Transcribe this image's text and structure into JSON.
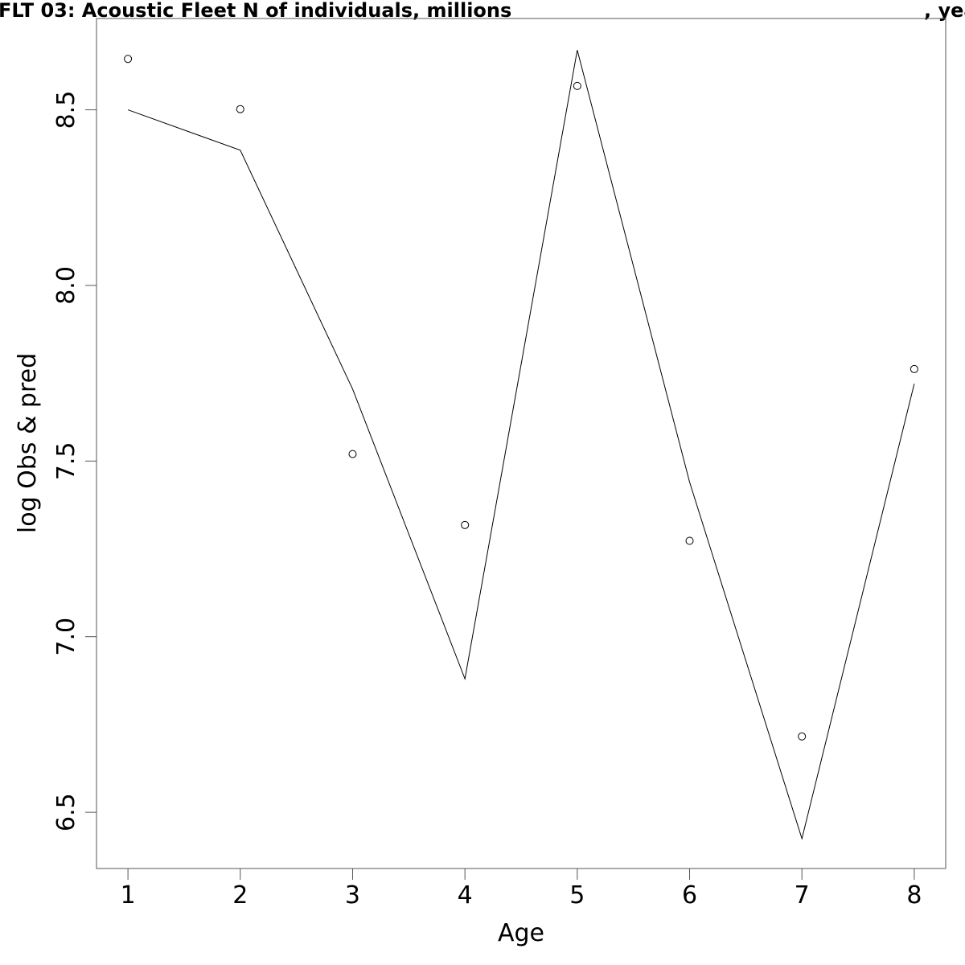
{
  "chart_data": {
    "type": "line",
    "title": "FLT 03: Acoustic Fleet   N of individuals, millions",
    "title_right": ", yea",
    "xlabel": "Age",
    "ylabel": "log Obs & pred",
    "x": [
      1,
      2,
      3,
      4,
      5,
      6,
      7,
      8
    ],
    "x_tick_labels": [
      "1",
      "2",
      "3",
      "4",
      "5",
      "6",
      "7",
      "8"
    ],
    "y_tick_values": [
      6.5,
      7.0,
      7.5,
      8.0,
      8.5
    ],
    "y_tick_labels": [
      "6.5",
      "7.0",
      "7.5",
      "8.0",
      "8.5"
    ],
    "xlim": [
      0.72,
      8.28
    ],
    "ylim": [
      6.34,
      8.76
    ],
    "series": [
      {
        "role": "observed",
        "style": "points",
        "values": [
          8.645,
          8.502,
          7.52,
          7.318,
          8.568,
          7.273,
          6.716,
          7.762
        ]
      },
      {
        "role": "predicted",
        "style": "line",
        "values": [
          8.5,
          8.385,
          7.705,
          6.88,
          8.67,
          7.44,
          6.425,
          7.72
        ]
      }
    ],
    "grid": false,
    "legend": "none"
  }
}
